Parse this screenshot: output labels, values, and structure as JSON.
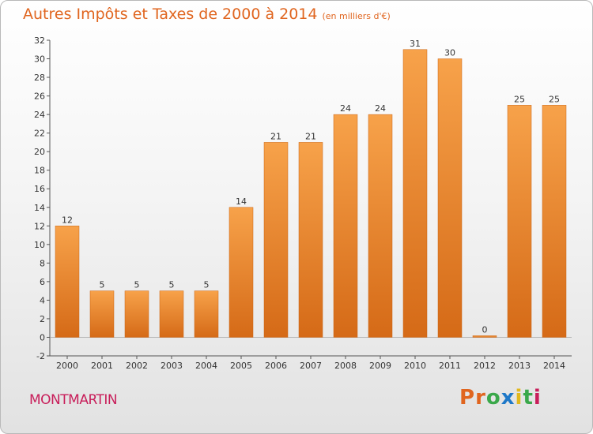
{
  "title": "Autres Impôts et Taxes de 2000 à 2014",
  "unit_note": "(en milliers d'€)",
  "commune": "MONTMARTIN",
  "brand": {
    "letters": [
      "P",
      "r",
      "o",
      "x",
      "i",
      "t",
      "i"
    ],
    "colors": [
      "#e0651f",
      "#e0651f",
      "#3aa84a",
      "#1e78c8",
      "#e2b81d",
      "#3aa84a",
      "#c81e5a"
    ]
  },
  "chart_data": {
    "type": "bar",
    "categories": [
      "2000",
      "2001",
      "2002",
      "2003",
      "2004",
      "2005",
      "2006",
      "2007",
      "2008",
      "2009",
      "2010",
      "2011",
      "2012",
      "2013",
      "2014"
    ],
    "values": [
      12,
      5,
      5,
      5,
      5,
      14,
      21,
      21,
      24,
      24,
      31,
      30,
      0,
      25,
      25
    ],
    "title": "Autres Impôts et Taxes de 2000 à 2014",
    "xlabel": "",
    "ylabel": "",
    "ylim": [
      -2,
      32
    ],
    "yticks": [
      -2,
      0,
      2,
      4,
      6,
      8,
      10,
      12,
      14,
      16,
      18,
      20,
      22,
      24,
      26,
      28,
      30,
      32
    ],
    "grid": false,
    "bar_color": "#e87e2a"
  }
}
